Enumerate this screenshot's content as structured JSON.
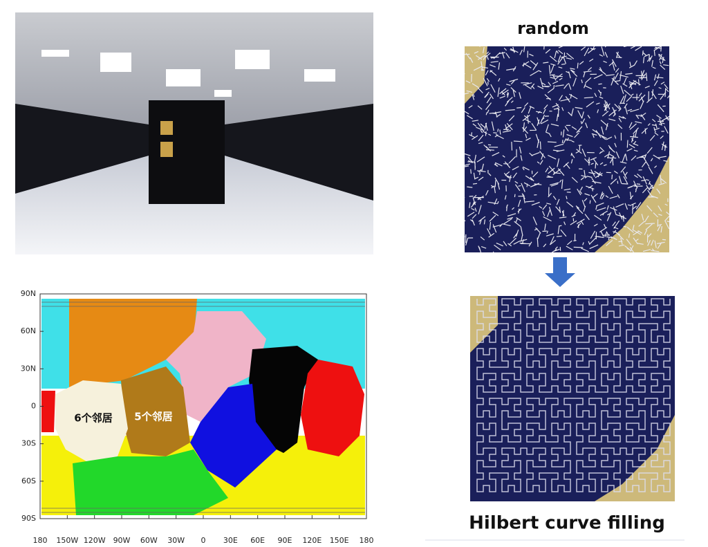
{
  "map": {
    "lat_labels": [
      "90N",
      "60N",
      "30N",
      "0",
      "30S",
      "60S",
      "90S"
    ],
    "lon_labels": [
      "180",
      "150W",
      "120W",
      "90W",
      "60W",
      "30W",
      "0",
      "30E",
      "60E",
      "90E",
      "120E",
      "150E",
      "180"
    ],
    "region_labels": [
      "6个邻居",
      "5个邻居"
    ]
  },
  "panels": {
    "top_label": "random",
    "bottom_label": "Hilbert curve filling"
  }
}
